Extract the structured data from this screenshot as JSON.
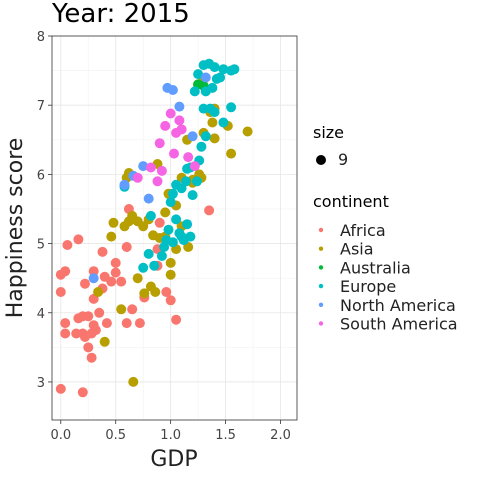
{
  "chart_data": {
    "type": "scatter",
    "title": "Year: 2015",
    "xlabel": "GDP",
    "ylabel": "Happiness score",
    "xlim": [
      -0.08,
      2.15
    ],
    "ylim": [
      2.45,
      8.0
    ],
    "x_ticks": [
      0.0,
      0.5,
      1.0,
      1.5,
      2.0
    ],
    "x_tick_labels": [
      "0.0",
      "0.5",
      "1.0",
      "1.5",
      "2.0"
    ],
    "y_ticks": [
      3,
      4,
      5,
      6,
      7,
      8
    ],
    "y_tick_labels": [
      "3",
      "4",
      "5",
      "6",
      "7",
      "8"
    ],
    "grid": true,
    "legend_position": "right",
    "size_legend": {
      "title": "size",
      "label": "9"
    },
    "color_legend_title": "continent",
    "series": [
      {
        "name": "Africa",
        "color": "#F8766D",
        "points": [
          [
            0.0,
            2.9
          ],
          [
            0.2,
            2.85
          ],
          [
            0.0,
            4.3
          ],
          [
            0.0,
            4.55
          ],
          [
            0.04,
            4.6
          ],
          [
            0.06,
            4.98
          ],
          [
            0.16,
            5.06
          ],
          [
            0.04,
            3.85
          ],
          [
            0.04,
            3.7
          ],
          [
            0.14,
            3.7
          ],
          [
            0.16,
            3.92
          ],
          [
            0.2,
            3.7
          ],
          [
            0.2,
            3.95
          ],
          [
            0.22,
            3.65
          ],
          [
            0.25,
            3.95
          ],
          [
            0.28,
            3.7
          ],
          [
            0.32,
            3.75
          ],
          [
            0.25,
            3.5
          ],
          [
            0.28,
            3.35
          ],
          [
            0.3,
            3.82
          ],
          [
            0.3,
            4.2
          ],
          [
            0.38,
            4.35
          ],
          [
            0.4,
            4.52
          ],
          [
            0.38,
            4.88
          ],
          [
            0.22,
            4.42
          ],
          [
            0.3,
            4.6
          ],
          [
            0.35,
            4.0
          ],
          [
            0.42,
            3.85
          ],
          [
            0.46,
            4.45
          ],
          [
            0.5,
            4.58
          ],
          [
            0.55,
            4.45
          ],
          [
            0.5,
            4.72
          ],
          [
            0.6,
            4.95
          ],
          [
            0.6,
            3.85
          ],
          [
            0.65,
            4.05
          ],
          [
            0.72,
            3.85
          ],
          [
            0.76,
            4.22
          ],
          [
            0.88,
            4.68
          ],
          [
            0.88,
            4.92
          ],
          [
            0.96,
            4.3
          ],
          [
            1.0,
            4.18
          ],
          [
            1.05,
            3.9
          ],
          [
            1.35,
            5.48
          ],
          [
            0.9,
            5.3
          ],
          [
            0.62,
            5.5
          ]
        ]
      },
      {
        "name": "Asia",
        "color": "#B79F00",
        "points": [
          [
            0.66,
            3.0
          ],
          [
            0.4,
            3.58
          ],
          [
            0.34,
            4.3
          ],
          [
            0.55,
            4.05
          ],
          [
            0.46,
            5.1
          ],
          [
            0.48,
            5.3
          ],
          [
            0.58,
            5.25
          ],
          [
            0.62,
            5.32
          ],
          [
            0.65,
            5.4
          ],
          [
            0.7,
            5.32
          ],
          [
            0.75,
            5.25
          ],
          [
            0.8,
            5.35
          ],
          [
            0.84,
            5.12
          ],
          [
            0.9,
            5.08
          ],
          [
            0.95,
            5.45
          ],
          [
            0.98,
            5.72
          ],
          [
            1.05,
            5.55
          ],
          [
            1.1,
            5.95
          ],
          [
            1.2,
            5.88
          ],
          [
            1.26,
            6.0
          ],
          [
            0.6,
            5.95
          ],
          [
            0.62,
            6.02
          ],
          [
            0.88,
            6.15
          ],
          [
            0.95,
            5.1
          ],
          [
            1.05,
            4.92
          ],
          [
            1.1,
            5.25
          ],
          [
            0.7,
            4.5
          ],
          [
            0.76,
            4.28
          ],
          [
            0.82,
            4.38
          ],
          [
            0.86,
            4.3
          ],
          [
            1.0,
            4.55
          ],
          [
            1.0,
            4.72
          ],
          [
            1.16,
            4.95
          ],
          [
            1.28,
            5.95
          ],
          [
            1.2,
            5.92
          ],
          [
            1.3,
            6.6
          ],
          [
            1.4,
            6.95
          ],
          [
            1.55,
            6.3
          ],
          [
            1.7,
            6.62
          ],
          [
            1.52,
            6.7
          ],
          [
            1.38,
            6.75
          ],
          [
            1.25,
            7.3
          ],
          [
            1.3,
            7.38
          ],
          [
            1.15,
            6.5
          ],
          [
            1.4,
            6.52
          ],
          [
            1.36,
            6.9
          ]
        ]
      },
      {
        "name": "Australia",
        "color": "#00BA38",
        "points": [
          [
            1.3,
            7.28
          ],
          [
            1.25,
            7.3
          ]
        ]
      },
      {
        "name": "Europe",
        "color": "#00BFC4",
        "points": [
          [
            0.85,
            4.68
          ],
          [
            0.92,
            4.82
          ],
          [
            0.94,
            4.95
          ],
          [
            0.96,
            5.05
          ],
          [
            0.98,
            5.2
          ],
          [
            1.02,
            5.02
          ],
          [
            1.05,
            5.35
          ],
          [
            1.08,
            5.15
          ],
          [
            1.1,
            5.1
          ],
          [
            1.12,
            5.05
          ],
          [
            1.15,
            5.28
          ],
          [
            1.18,
            5.1
          ],
          [
            1.0,
            5.6
          ],
          [
            1.02,
            5.72
          ],
          [
            1.05,
            5.85
          ],
          [
            1.1,
            5.8
          ],
          [
            1.14,
            5.9
          ],
          [
            1.15,
            6.08
          ],
          [
            1.18,
            6.1
          ],
          [
            1.2,
            5.7
          ],
          [
            1.24,
            5.9
          ],
          [
            1.26,
            6.2
          ],
          [
            1.28,
            6.4
          ],
          [
            1.32,
            6.55
          ],
          [
            1.36,
            6.95
          ],
          [
            1.4,
            6.9
          ],
          [
            1.48,
            6.75
          ],
          [
            1.55,
            6.97
          ],
          [
            1.3,
            6.95
          ],
          [
            1.32,
            7.2
          ],
          [
            1.38,
            7.25
          ],
          [
            1.42,
            7.38
          ],
          [
            1.45,
            7.4
          ],
          [
            1.48,
            7.52
          ],
          [
            1.55,
            7.5
          ],
          [
            1.3,
            7.58
          ],
          [
            1.35,
            7.6
          ],
          [
            1.4,
            7.55
          ],
          [
            1.58,
            7.52
          ],
          [
            1.25,
            7.45
          ],
          [
            1.22,
            7.2
          ],
          [
            0.8,
            4.85
          ],
          [
            0.75,
            4.65
          ],
          [
            0.58,
            5.82
          ],
          [
            0.82,
            5.4
          ]
        ]
      },
      {
        "name": "North America",
        "color": "#619CFF",
        "points": [
          [
            0.3,
            4.5
          ],
          [
            0.58,
            5.85
          ],
          [
            0.66,
            5.98
          ],
          [
            0.75,
            6.12
          ],
          [
            0.8,
            5.65
          ],
          [
            0.97,
            7.25
          ],
          [
            1.02,
            7.22
          ],
          [
            1.08,
            6.98
          ],
          [
            1.2,
            6.55
          ],
          [
            1.32,
            7.4
          ]
        ]
      },
      {
        "name": "South America",
        "color": "#F564E3",
        "points": [
          [
            0.7,
            5.95
          ],
          [
            0.82,
            6.1
          ],
          [
            0.88,
            5.9
          ],
          [
            0.9,
            6.45
          ],
          [
            0.95,
            6.7
          ],
          [
            1.0,
            6.88
          ],
          [
            1.03,
            6.3
          ],
          [
            1.05,
            6.6
          ],
          [
            1.08,
            6.78
          ],
          [
            1.1,
            6.65
          ],
          [
            1.16,
            6.25
          ],
          [
            1.22,
            6.12
          ],
          [
            0.92,
            6.05
          ]
        ]
      }
    ]
  }
}
